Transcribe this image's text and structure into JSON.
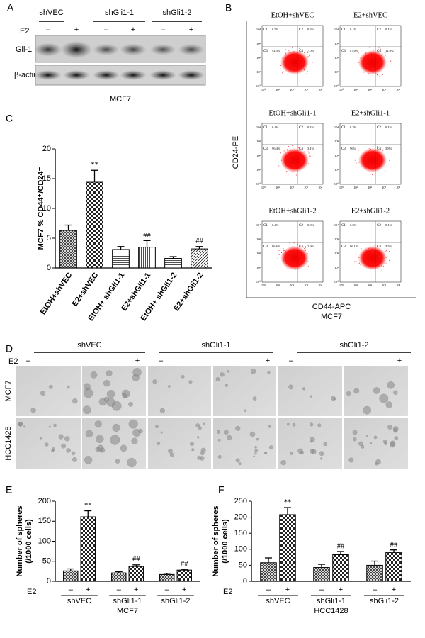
{
  "panel_labels": [
    "A",
    "B",
    "C",
    "D",
    "E",
    "F"
  ],
  "blot": {
    "groups": [
      "shVEC",
      "shGli1-1",
      "shGli1-2"
    ],
    "treatment": "E2",
    "signs": [
      "–",
      "+"
    ],
    "rows": [
      "Gli-1",
      "β-actin"
    ],
    "cell_line": "MCF7"
  },
  "flow": {
    "ylabel": "CD24-PE",
    "xlabel": "CD44-APC",
    "cell_line": "MCF7",
    "ticks": [
      "10⁰",
      "10¹",
      "10²",
      "10³",
      "10⁴"
    ],
    "plots": [
      {
        "title": "EtOH+shVEC",
        "quadrants": [
          {
            "name": "C1",
            "value": "0.5%"
          },
          {
            "name": "C2",
            "value": "0.2%"
          },
          {
            "name": "C3",
            "value": "92.3%"
          },
          {
            "name": "C4",
            "value": "7.0%"
          }
        ]
      },
      {
        "title": "E2+shVEC",
        "quadrants": [
          {
            "name": "C1",
            "value": "0.1%"
          },
          {
            "name": "C2",
            "value": "0.1%"
          },
          {
            "name": "C3",
            "value": "87.0%"
          },
          {
            "name": "C4",
            "value": "12.9%"
          }
        ]
      },
      {
        "title": "EtOH+shGli1-1",
        "quadrants": [
          {
            "name": "C1",
            "value": "0.4%"
          },
          {
            "name": "C2",
            "value": "0.1%"
          },
          {
            "name": "C3",
            "value": "96.4%"
          },
          {
            "name": "C4",
            "value": "3.1%"
          }
        ]
      },
      {
        "title": "E2+shGli1-1",
        "quadrants": [
          {
            "name": "C1",
            "value": "0.3%"
          },
          {
            "name": "C2",
            "value": "0.1%"
          },
          {
            "name": "C3",
            "value": "96%"
          },
          {
            "name": "C4",
            "value": "3.8%"
          }
        ]
      },
      {
        "title": "EtOH+shGli1-2",
        "quadrants": [
          {
            "name": "C1",
            "value": "0.4%"
          },
          {
            "name": "C2",
            "value": "0.0%"
          },
          {
            "name": "C3",
            "value": "96.6%"
          },
          {
            "name": "C4",
            "value": "2.9%"
          }
        ]
      },
      {
        "title": "E2+shGli1-2",
        "quadrants": [
          {
            "name": "C1",
            "value": "0.3%"
          },
          {
            "name": "C2",
            "value": "0.1%"
          },
          {
            "name": "C3",
            "value": "96.1%"
          },
          {
            "name": "C4",
            "value": "3.5%"
          }
        ]
      }
    ]
  },
  "spheres": {
    "groups": [
      "shVEC",
      "shGli1-1",
      "shGli1-2"
    ],
    "treatment": "E2",
    "signs": [
      "–",
      "+"
    ],
    "rows": [
      "MCF7",
      "HCC1428"
    ]
  },
  "chart_data": [
    {
      "type": "bar",
      "ylabel": "MCF7 % CD44⁺/CD24⁻",
      "categories": [
        "EtOH+shVEC",
        "E2+shVEC",
        "EtOH+ shGli1-1",
        "E2+shGli1-1",
        "EtOH+ shGli1-2",
        "E2+shGli1-2"
      ],
      "values": [
        6.3,
        14.4,
        3.1,
        3.5,
        1.6,
        3.2
      ],
      "errors": [
        0.9,
        2.0,
        0.5,
        1.1,
        0.3,
        0.4
      ],
      "value_annotations": [
        null,
        "**",
        null,
        "##",
        null,
        "##"
      ],
      "patterns": [
        "crosshatch",
        "checker",
        "hlines",
        "vlines",
        "hlines",
        "diagonal"
      ],
      "ylim": [
        0,
        20
      ],
      "yticks": [
        0,
        5,
        10,
        15,
        20
      ]
    },
    {
      "type": "grouped_bar",
      "ylabel": [
        "Number of spheres",
        "(/1000 cells)"
      ],
      "xlabel": "MCF7",
      "treatment": "E2",
      "categories": [
        "shVEC",
        "shGli1-1",
        "shGli1-2"
      ],
      "series": [
        {
          "name": "–",
          "pattern": "crosshatch",
          "values": [
            26,
            21,
            17
          ],
          "errors": [
            5,
            3,
            3
          ],
          "annotations": [
            null,
            null,
            null
          ]
        },
        {
          "name": "+",
          "pattern": "checker",
          "values": [
            161,
            37,
            28
          ],
          "errors": [
            15,
            4,
            2
          ],
          "annotations": [
            "**",
            "##",
            "##"
          ]
        }
      ],
      "ylim": [
        0,
        200
      ],
      "yticks": [
        0,
        50,
        100,
        150,
        200
      ]
    },
    {
      "type": "grouped_bar",
      "ylabel": [
        "Number of spheres",
        "(/1000 cells)"
      ],
      "xlabel": "HCC1428",
      "treatment": "E2",
      "categories": [
        "shVEC",
        "shGli1-1",
        "shGli1-2"
      ],
      "series": [
        {
          "name": "–",
          "pattern": "crosshatch",
          "values": [
            58,
            43,
            50
          ],
          "errors": [
            15,
            10,
            13
          ],
          "annotations": [
            null,
            null,
            null
          ]
        },
        {
          "name": "+",
          "pattern": "checker",
          "values": [
            208,
            83,
            90
          ],
          "errors": [
            22,
            10,
            8
          ],
          "annotations": [
            "**",
            "##",
            "##"
          ]
        }
      ],
      "ylim": [
        0,
        250
      ],
      "yticks": [
        0,
        50,
        100,
        150,
        200,
        250
      ]
    }
  ]
}
